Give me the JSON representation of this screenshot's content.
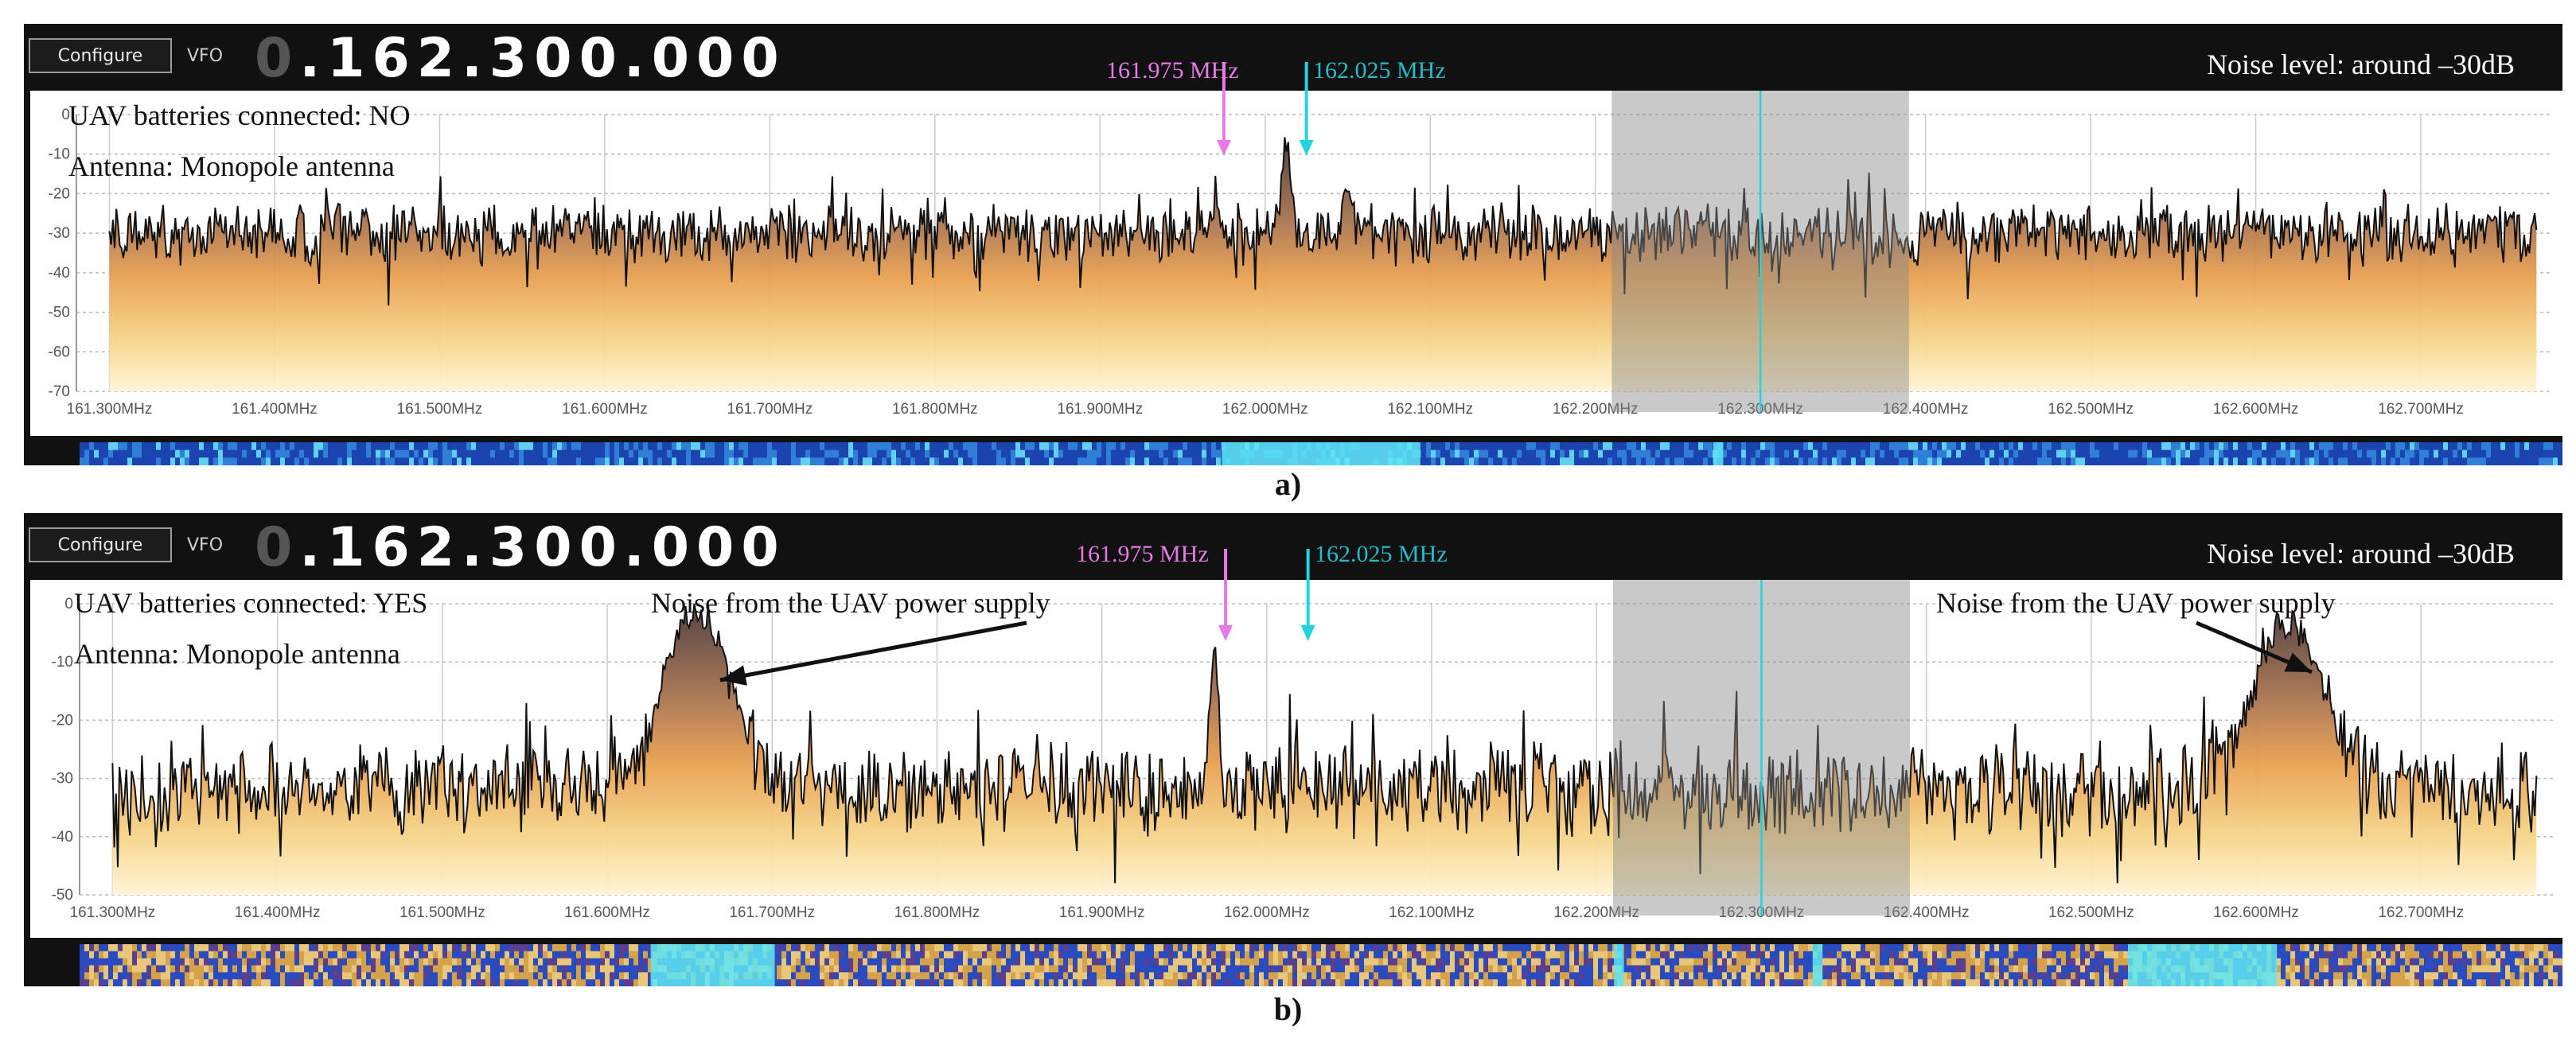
{
  "panels": [
    {
      "id": "a",
      "config_label": "Configure",
      "vfo_label": "VFO",
      "vfo_prefix": "0",
      "vfo_value": ".162.300.000",
      "noise_label": "Noise level: around –30dB",
      "batteries_label": "UAV batteries connected: NO",
      "antenna_label": "Antenna: Monopole antenna",
      "marker1_label": "161.975 MHz",
      "marker2_label": "162.025 MHz",
      "caption": "a)",
      "noise_annotation": "",
      "y_ticks": [
        "0",
        "-10",
        "-20",
        "-30",
        "-40",
        "-50",
        "-60",
        "-70"
      ],
      "x_ticks": [
        "161.300MHz",
        "161.400MHz",
        "161.500MHz",
        "161.600MHz",
        "161.700MHz",
        "161.800MHz",
        "161.900MHz",
        "162.000MHz",
        "162.100MHz",
        "162.200MHz",
        "162.300MHz",
        "162.400MHz",
        "162.500MHz",
        "162.600MHz",
        "162.700MHz"
      ]
    },
    {
      "id": "b",
      "config_label": "Configure",
      "vfo_label": "VFO",
      "vfo_prefix": "0",
      "vfo_value": ".162.300.000",
      "noise_label": "Noise level: around –30dB",
      "batteries_label": "UAV batteries connected: YES",
      "antenna_label": "Antenna: Monopole antenna",
      "marker1_label": "161.975 MHz",
      "marker2_label": "162.025 MHz",
      "caption": "b)",
      "noise_annotation": "Noise from the UAV power supply",
      "y_ticks": [
        "0",
        "-10",
        "-20",
        "-30",
        "-40",
        "-50"
      ],
      "x_ticks": [
        "161.300MHz",
        "161.400MHz",
        "161.500MHz",
        "161.600MHz",
        "161.700MHz",
        "161.800MHz",
        "161.900MHz",
        "162.000MHz",
        "162.100MHz",
        "162.200MHz",
        "162.300MHz",
        "162.400MHz",
        "162.500MHz",
        "162.600MHz",
        "162.700MHz"
      ]
    }
  ],
  "chart_data": [
    {
      "type": "area",
      "title": "",
      "xlabel": "",
      "ylabel": "",
      "xlim_mhz": [
        161.28,
        162.78
      ],
      "ylim_db": [
        -70,
        0
      ],
      "grid": true,
      "center_mhz": 162.3,
      "selection_mhz": [
        162.21,
        162.39
      ],
      "markers_mhz": [
        161.975,
        162.025
      ],
      "noise_floor_db": -30,
      "peaks": [
        {
          "x_mhz": 162.013,
          "y_db": -7
        },
        {
          "x_mhz": 162.05,
          "y_db": -18
        }
      ],
      "colors": {
        "marker1": "#e879e8",
        "marker2": "#22d3e0",
        "center": "#22d3e0",
        "trace": "#111111"
      }
    },
    {
      "type": "area",
      "title": "",
      "xlabel": "",
      "ylabel": "",
      "xlim_mhz": [
        161.28,
        162.78
      ],
      "ylim_db": [
        -50,
        0
      ],
      "grid": true,
      "center_mhz": 162.3,
      "selection_mhz": [
        162.21,
        162.39
      ],
      "markers_mhz": [
        161.975,
        162.025
      ],
      "noise_floor_db": -32,
      "peaks": [
        {
          "x_mhz": 161.655,
          "y_db": -1
        },
        {
          "x_mhz": 161.968,
          "y_db": -8
        },
        {
          "x_mhz": 162.62,
          "y_db": -3
        }
      ],
      "colors": {
        "marker1": "#e879e8",
        "marker2": "#22d3e0",
        "center": "#22d3e0",
        "trace": "#111111"
      }
    }
  ]
}
